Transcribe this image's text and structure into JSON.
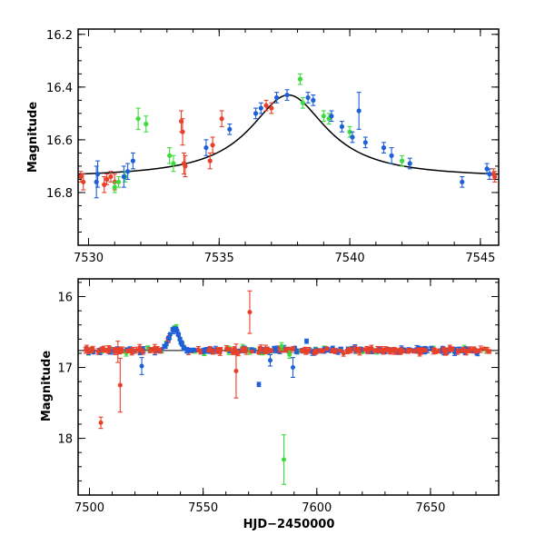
{
  "colors": {
    "blue": "#1f5fd8",
    "red": "#e8402a",
    "green": "#3ddc3d",
    "fit": "#000000"
  },
  "chart_data": [
    {
      "type": "scatter",
      "name": "zoom",
      "xlabel": "",
      "ylabel": "Magnitude",
      "xlim": [
        7529.6,
        7545.7
      ],
      "ylim": [
        17.0,
        16.18
      ],
      "y_inverted": true,
      "x_major_ticks": [
        7530,
        7535,
        7540,
        7545
      ],
      "x_tick_labels": [
        "7530",
        "7535",
        "7540",
        "7545"
      ],
      "y_major_ticks": [
        16.2,
        16.4,
        16.6,
        16.8
      ],
      "y_tick_labels": [
        "16.2",
        "16.4",
        "16.6",
        "16.8"
      ],
      "fit_curve": {
        "type": "line",
        "color": "#000000",
        "baseline": 16.745,
        "peak_x": 7537.65,
        "peak_y": 16.43,
        "width": 1.8
      },
      "series": [
        {
          "color": "red",
          "points": [
            [
              7529.7,
              16.74,
              0.02
            ],
            [
              7529.8,
              16.76,
              0.03
            ],
            [
              7530.6,
              16.77,
              0.03
            ],
            [
              7530.7,
              16.75,
              0.02
            ],
            [
              7530.85,
              16.74,
              0.02
            ],
            [
              7531.0,
              16.76,
              0.03
            ],
            [
              7533.55,
              16.53,
              0.04
            ],
            [
              7533.6,
              16.57,
              0.05
            ],
            [
              7533.65,
              16.69,
              0.04
            ],
            [
              7533.7,
              16.7,
              0.04
            ],
            [
              7534.65,
              16.68,
              0.03
            ],
            [
              7534.75,
              16.62,
              0.03
            ],
            [
              7535.1,
              16.52,
              0.03
            ],
            [
              7536.8,
              16.47,
              0.02
            ],
            [
              7537.0,
              16.48,
              0.02
            ],
            [
              7545.5,
              16.73,
              0.02
            ],
            [
              7545.55,
              16.74,
              0.02
            ]
          ]
        },
        {
          "color": "green",
          "points": [
            [
              7531.0,
              16.78,
              0.02
            ],
            [
              7531.15,
              16.76,
              0.02
            ],
            [
              7531.4,
              16.74,
              0.02
            ],
            [
              7531.9,
              16.52,
              0.04
            ],
            [
              7532.2,
              16.54,
              0.03
            ],
            [
              7533.1,
              16.66,
              0.03
            ],
            [
              7533.25,
              16.69,
              0.03
            ],
            [
              7538.1,
              16.37,
              0.02
            ],
            [
              7538.2,
              16.46,
              0.02
            ],
            [
              7539.0,
              16.51,
              0.02
            ],
            [
              7539.2,
              16.52,
              0.02
            ],
            [
              7540.0,
              16.57,
              0.02
            ],
            [
              7542.0,
              16.68,
              0.02
            ]
          ]
        },
        {
          "color": "blue",
          "points": [
            [
              7530.3,
              16.76,
              0.06
            ],
            [
              7530.35,
              16.73,
              0.05
            ],
            [
              7531.35,
              16.74,
              0.04
            ],
            [
              7531.5,
              16.72,
              0.03
            ],
            [
              7531.7,
              16.68,
              0.03
            ],
            [
              7534.5,
              16.63,
              0.03
            ],
            [
              7535.4,
              16.56,
              0.02
            ],
            [
              7536.4,
              16.5,
              0.02
            ],
            [
              7536.6,
              16.48,
              0.02
            ],
            [
              7537.2,
              16.44,
              0.02
            ],
            [
              7537.6,
              16.43,
              0.02
            ],
            [
              7538.4,
              16.44,
              0.02
            ],
            [
              7538.6,
              16.45,
              0.02
            ],
            [
              7539.3,
              16.51,
              0.02
            ],
            [
              7539.7,
              16.55,
              0.02
            ],
            [
              7540.35,
              16.49,
              0.07
            ],
            [
              7540.1,
              16.59,
              0.02
            ],
            [
              7540.6,
              16.61,
              0.02
            ],
            [
              7541.3,
              16.63,
              0.02
            ],
            [
              7541.6,
              16.66,
              0.03
            ],
            [
              7542.3,
              16.69,
              0.02
            ],
            [
              7544.3,
              16.76,
              0.02
            ],
            [
              7545.25,
              16.71,
              0.02
            ],
            [
              7545.35,
              16.73,
              0.02
            ]
          ]
        }
      ]
    },
    {
      "type": "scatter",
      "name": "full",
      "xlabel": "HJD−2450000",
      "ylabel": "Magnitude",
      "xlim": [
        7495,
        7680
      ],
      "ylim": [
        18.8,
        15.75
      ],
      "y_inverted": true,
      "x_major_ticks": [
        7500,
        7550,
        7600,
        7650
      ],
      "x_tick_labels": [
        "7500",
        "7550",
        "7600",
        "7650"
      ],
      "y_major_ticks": [
        16,
        17,
        18
      ],
      "y_tick_labels": [
        "16",
        "17",
        "18"
      ],
      "reference_line": 16.76,
      "outliers": {
        "red": [
          [
            7505,
            17.78,
            0.08
          ],
          [
            7512.5,
            16.78,
            0.15
          ],
          [
            7513.5,
            17.25,
            0.38
          ],
          [
            7564.5,
            17.05,
            0.38
          ],
          [
            7570.5,
            16.22,
            0.3
          ]
        ],
        "green": [
          [
            7585.5,
            18.3,
            0.35
          ],
          [
            7584.5,
            16.7,
            0.05
          ],
          [
            7588,
            16.82,
            0.05
          ]
        ],
        "blue": [
          [
            7523,
            16.98,
            0.12
          ],
          [
            7574.5,
            17.24,
            0.03
          ],
          [
            7579.5,
            16.9,
            0.08
          ],
          [
            7589.5,
            17.0,
            0.14
          ],
          [
            7595.5,
            16.63,
            0.03
          ]
        ]
      },
      "flare": {
        "x_start": 7528,
        "x_peak": 7537.6,
        "x_end": 7548,
        "peak_y": 16.45
      }
    }
  ]
}
